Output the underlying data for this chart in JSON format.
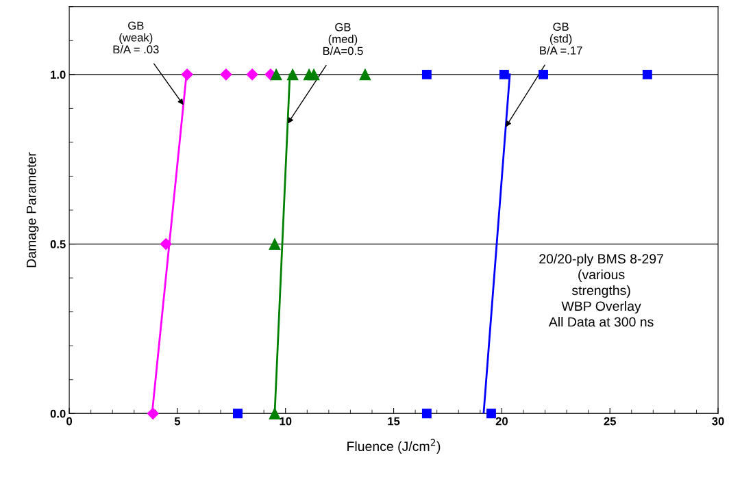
{
  "chart_data": {
    "type": "scatter",
    "xlabel": "Fluence (J/cm$^{2}$)",
    "ylabel": "Damage Parameter",
    "xlim": [
      0,
      30
    ],
    "xticks": [
      0,
      5,
      10,
      15,
      20,
      25,
      30
    ],
    "ylim": [
      0,
      1.2
    ],
    "yticks": [
      {
        "value": 0,
        "label": "0.0"
      },
      {
        "value": 0.5,
        "label": "0.5"
      },
      {
        "value": 1.0,
        "label": "1.0"
      }
    ],
    "grid": "y",
    "legend": false,
    "series": [
      {
        "marker": "diamond",
        "color": "#ff00ff",
        "x": [
          3.87,
          4.47,
          5.45,
          7.25,
          8.46,
          9.31
        ],
        "values": [
          0,
          0.5,
          1,
          1,
          1,
          1
        ]
      },
      {
        "type": "line",
        "marker": "none",
        "color": "#ff00ff",
        "x": [
          3.83,
          5.42
        ],
        "values": [
          0,
          1
        ]
      },
      {
        "marker": "triangle",
        "color": "#008000",
        "x": [
          9.5,
          9.5,
          9.57,
          10.33,
          11.09,
          11.31,
          13.68
        ],
        "values": [
          0,
          0.5,
          1,
          1,
          1,
          1,
          1
        ]
      },
      {
        "type": "line",
        "marker": "none",
        "color": "#008000",
        "x": [
          9.5,
          10.2
        ],
        "values": [
          0,
          1
        ]
      },
      {
        "marker": "square",
        "color": "#0000ff",
        "x": [
          7.79,
          16.53,
          19.51,
          16.53,
          20.11,
          21.92,
          26.73
        ],
        "values": [
          0,
          0,
          0,
          1,
          1,
          1,
          1
        ]
      },
      {
        "type": "line",
        "marker": "none",
        "color": "#0000ff",
        "x": [
          19.16,
          20.37
        ],
        "values": [
          0,
          1
        ]
      }
    ],
    "annotations": [
      {
        "text": "GB\n(weak)\nB/A = .03",
        "x": 5.28,
        "y": 0.91
      },
      {
        "text": "GB\n(med)\nB/A=0.5",
        "x": 10.1,
        "y": 0.855
      },
      {
        "text": "GB\n(std)\nB/A =.17",
        "x": 20.18,
        "y": 0.845
      },
      "20/20-ply BMS 8-297\n(various\nstrengths)\nWBP Overlay\nAll Data at 300 ns"
    ]
  }
}
